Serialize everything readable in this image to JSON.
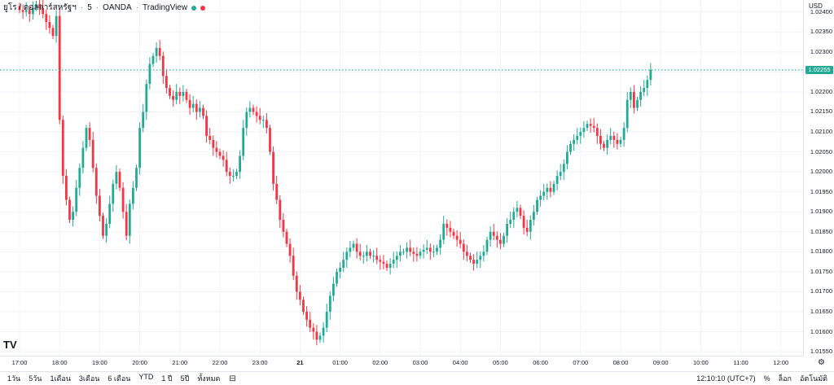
{
  "header": {
    "symbol": "ยูโร / ดอลลาร์สหรัฐฯ",
    "interval": "5",
    "broker": "OANDA",
    "source": "TradingView",
    "status_colors": [
      "#22ab94",
      "#f23645"
    ]
  },
  "price_scale": {
    "currency": "USD",
    "last_price_label": "1.02255"
  },
  "bottom_bar": {
    "ranges": [
      "1วัน",
      "5วัน",
      "1เดือน",
      "3เดือน",
      "6 เดือน",
      "YTD",
      "1 ปี",
      "5ปี",
      "ทั้งหมด"
    ],
    "clock": "12:10:10 (UTC+7)",
    "percent_label": "%",
    "log_label": "ล็อก",
    "auto_label": "อัตโนมัติ"
  },
  "chart_data": {
    "type": "candlestick",
    "title": "",
    "xlabel": "",
    "ylabel": "",
    "ylim": [
      1.0154,
      1.0243
    ],
    "y_ticks": [
      "1.02400",
      "1.02350",
      "1.02300",
      "1.02250",
      "1.02200",
      "1.02150",
      "1.02100",
      "1.02050",
      "1.02000",
      "1.01950",
      "1.01900",
      "1.01850",
      "1.01800",
      "1.01750",
      "1.01700",
      "1.01650",
      "1.01600",
      "1.01550"
    ],
    "y_tick_values": [
      1.024,
      1.0235,
      1.023,
      1.0225,
      1.022,
      1.0215,
      1.021,
      1.0205,
      1.02,
      1.0195,
      1.019,
      1.0185,
      1.018,
      1.0175,
      1.017,
      1.0165,
      1.016,
      1.0155
    ],
    "x_ticks": [
      {
        "label": "17:00",
        "t": 0
      },
      {
        "label": "18:00",
        "t": 12
      },
      {
        "label": "19:00",
        "t": 24
      },
      {
        "label": "20:00",
        "t": 36
      },
      {
        "label": "21:00",
        "t": 48
      },
      {
        "label": "22:00",
        "t": 60
      },
      {
        "label": "23:00",
        "t": 72
      },
      {
        "label": "21",
        "t": 84
      },
      {
        "label": "01:00",
        "t": 96
      },
      {
        "label": "02:00",
        "t": 108
      },
      {
        "label": "03:00",
        "t": 120
      },
      {
        "label": "04:00",
        "t": 132
      },
      {
        "label": "05:00",
        "t": 144
      },
      {
        "label": "06:00",
        "t": 156
      },
      {
        "label": "07:00",
        "t": 168
      },
      {
        "label": "08:00",
        "t": 180
      },
      {
        "label": "09:00",
        "t": 192
      },
      {
        "label": "10:00",
        "t": 204
      },
      {
        "label": "11:00",
        "t": 216
      },
      {
        "label": "12:00",
        "t": 228
      }
    ],
    "last_price": 1.02255,
    "up_color": "#22ab94",
    "down_color": "#f23645",
    "grid": true,
    "close": [
      1.02405,
      1.024,
      1.02405,
      1.02395,
      1.0241,
      1.0242,
      1.0241,
      1.02395,
      1.02375,
      1.0236,
      1.0234,
      1.0239,
      1.0213,
      1.0199,
      1.0193,
      1.0188,
      1.019,
      1.0196,
      1.0201,
      1.0206,
      1.0211,
      1.0208,
      1.0201,
      1.0194,
      1.0189,
      1.0184,
      1.0187,
      1.0192,
      1.0197,
      1.02,
      1.0196,
      1.019,
      1.0184,
      1.0192,
      1.0196,
      1.0201,
      1.0211,
      1.0215,
      1.0222,
      1.0227,
      1.0229,
      1.0231,
      1.0229,
      1.0224,
      1.0221,
      1.0219,
      1.0218,
      1.022,
      1.0219,
      1.022,
      1.0218,
      1.0216,
      1.0217,
      1.0215,
      1.0216,
      1.0214,
      1.0209,
      1.0208,
      1.0206,
      1.0205,
      1.0204,
      1.0203,
      1.02,
      1.0199,
      1.0199,
      1.02,
      1.0204,
      1.0211,
      1.0215,
      1.0216,
      1.0215,
      1.0214,
      1.0213,
      1.0213,
      1.0211,
      1.0205,
      1.0197,
      1.0193,
      1.0188,
      1.0185,
      1.0182,
      1.0179,
      1.0174,
      1.017,
      1.0168,
      1.0165,
      1.0163,
      1.0161,
      1.016,
      1.0158,
      1.0159,
      1.0161,
      1.0165,
      1.0169,
      1.0172,
      1.0175,
      1.0176,
      1.0178,
      1.018,
      1.0181,
      1.0182,
      1.018,
      1.0179,
      1.0179,
      1.018,
      1.0179,
      1.0179,
      1.0178,
      1.01775,
      1.0177,
      1.0176,
      1.0177,
      1.0178,
      1.0179,
      1.018,
      1.018,
      1.0181,
      1.018,
      1.01795,
      1.0179,
      1.018,
      1.01805,
      1.0181,
      1.018,
      1.018,
      1.0181,
      1.0183,
      1.0187,
      1.0186,
      1.0185,
      1.0184,
      1.0183,
      1.0182,
      1.018,
      1.0179,
      1.0178,
      1.0177,
      1.0178,
      1.0179,
      1.018,
      1.0183,
      1.0185,
      1.0184,
      1.0183,
      1.0182,
      1.0184,
      1.0187,
      1.0188,
      1.019,
      1.0191,
      1.0189,
      1.0186,
      1.0185,
      1.0188,
      1.019,
      1.0193,
      1.0194,
      1.0195,
      1.0196,
      1.0195,
      1.0197,
      1.0199,
      1.02,
      1.0202,
      1.0205,
      1.0207,
      1.0208,
      1.0209,
      1.021,
      1.0211,
      1.0212,
      1.02115,
      1.0211,
      1.0209,
      1.0207,
      1.0206,
      1.0208,
      1.0209,
      1.0208,
      1.0207,
      1.0208,
      1.0211,
      1.0218,
      1.022,
      1.0216,
      1.0218,
      1.022,
      1.0221,
      1.0223,
      1.02255
    ]
  }
}
